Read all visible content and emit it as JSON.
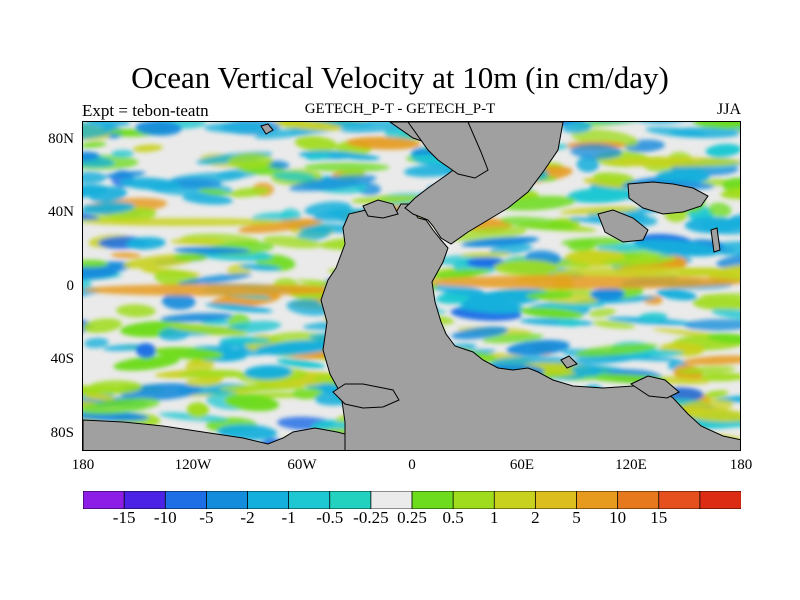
{
  "title": "Ocean Vertical Velocity at 10m (in cm/day)",
  "left_label": "Expt = tebon-teatn",
  "center_label": "GETECH_P-T - GETECH_P-T",
  "right_label": "JJA",
  "map": {
    "lat_ticks": [
      "80N",
      "40N",
      "0",
      "40S",
      "80S"
    ],
    "lon_ticks": [
      "180",
      "120W",
      "60W",
      "0",
      "60E",
      "120E",
      "180"
    ],
    "land_color": "#a0a0a0"
  },
  "colorbar": {
    "colors": [
      "#8c1ee6",
      "#4b23e6",
      "#1e6ee6",
      "#148cdc",
      "#14afdc",
      "#1ec8d2",
      "#23d2be",
      "#ebebeb",
      "#6edc1e",
      "#a0dc1e",
      "#c8d21e",
      "#dcbe1e",
      "#e69b1e",
      "#e6781e",
      "#e6501e",
      "#dc2d14"
    ],
    "labels": [
      "-15",
      "-10",
      "-5",
      "-2",
      "-1",
      "-0.5",
      "-0.25",
      "0.25",
      "0.5",
      "1",
      "2",
      "5",
      "10",
      "15"
    ]
  }
}
